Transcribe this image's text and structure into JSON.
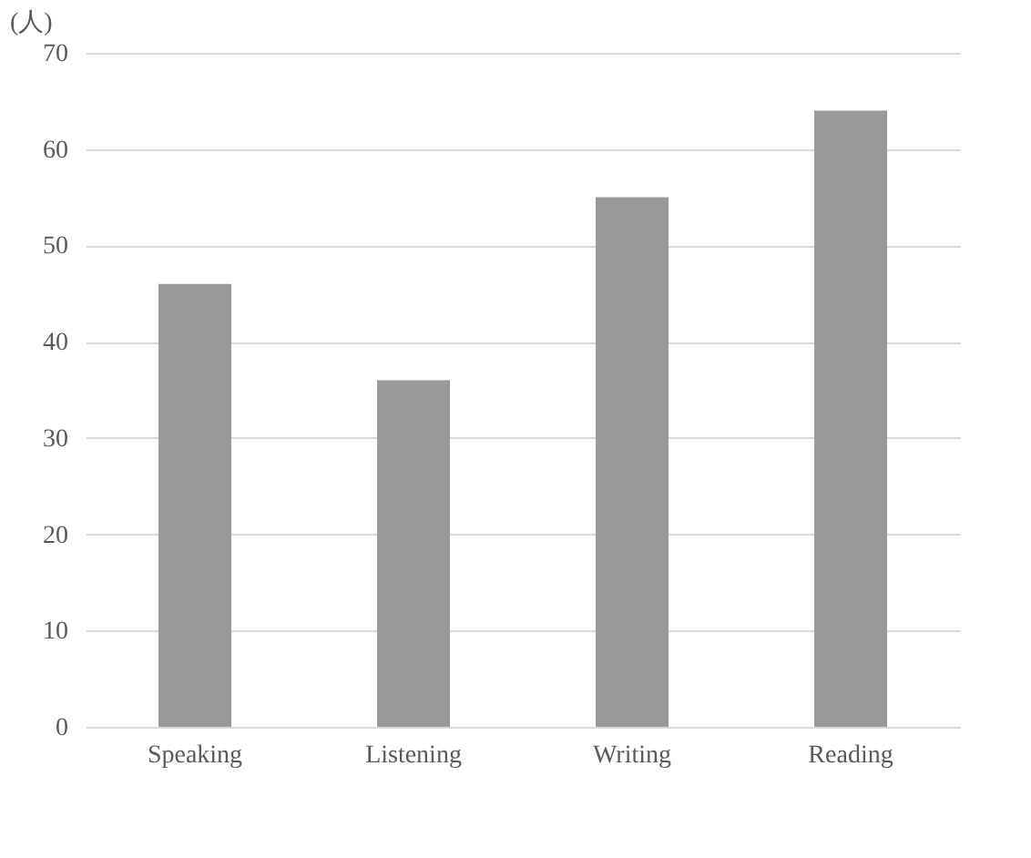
{
  "chart_data": {
    "type": "bar",
    "ylabel": "(人)",
    "categories": [
      "Speaking",
      "Listening",
      "Writing",
      "Reading"
    ],
    "values": [
      46,
      36,
      55,
      64
    ],
    "color": "#999999",
    "ylim": [
      0,
      70
    ],
    "yticks": [
      0,
      10,
      20,
      30,
      40,
      50,
      60,
      70
    ],
    "grid": "y"
  }
}
